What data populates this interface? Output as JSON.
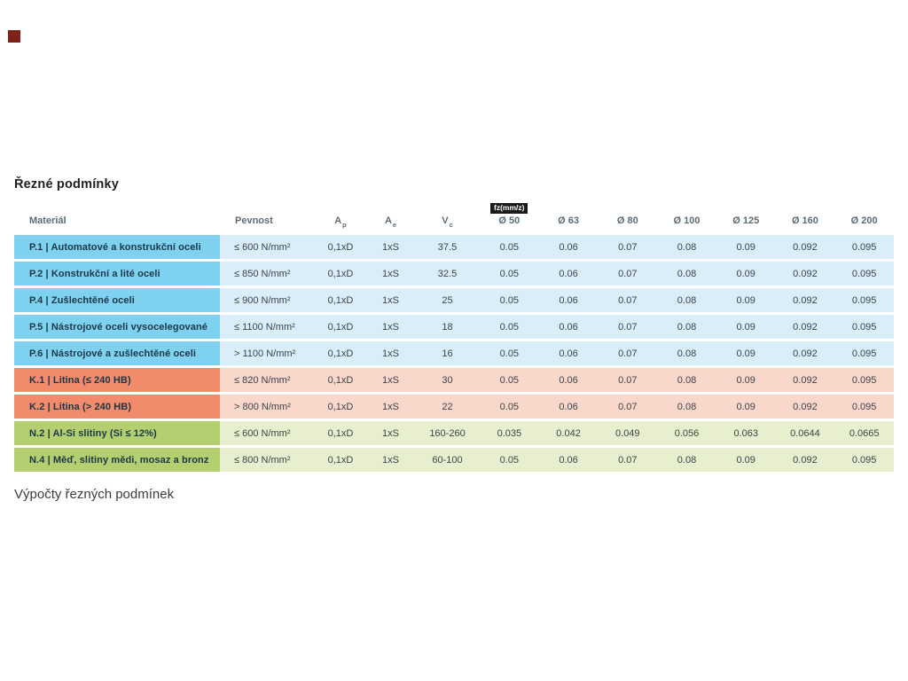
{
  "page": {
    "title": "Řezné podmínky",
    "footer_text": "Výpočty řezných podmínek"
  },
  "table": {
    "headers": {
      "material": "Materiál",
      "pevnost": "Pevnost",
      "ap_base": "A",
      "ap_sub": "p",
      "ae_base": "A",
      "ae_sub": "e",
      "vc_base": "V",
      "vc_sub": "c",
      "fz_chip": "fz(mm/z)",
      "diameters": [
        "Ø 50",
        "Ø 63",
        "Ø 80",
        "Ø 100",
        "Ø 125",
        "Ø 160",
        "Ø 200"
      ]
    },
    "rows": [
      {
        "group": "P",
        "material": "P.1 | Automatové a konstrukční oceli",
        "pevnost": "≤ 600 N/mm²",
        "ap": "0,1xD",
        "ae": "1xS",
        "vc": "37.5",
        "fz": [
          "0.05",
          "0.06",
          "0.07",
          "0.08",
          "0.09",
          "0.092",
          "0.095"
        ]
      },
      {
        "group": "P",
        "material": "P.2 | Konstrukční a lité oceli",
        "pevnost": "≤ 850 N/mm²",
        "ap": "0,1xD",
        "ae": "1xS",
        "vc": "32.5",
        "fz": [
          "0.05",
          "0.06",
          "0.07",
          "0.08",
          "0.09",
          "0.092",
          "0.095"
        ]
      },
      {
        "group": "P",
        "material": "P.4 | Zušlechtěné oceli",
        "pevnost": "≤ 900 N/mm²",
        "ap": "0,1xD",
        "ae": "1xS",
        "vc": "25",
        "fz": [
          "0.05",
          "0.06",
          "0.07",
          "0.08",
          "0.09",
          "0.092",
          "0.095"
        ]
      },
      {
        "group": "P",
        "material": "P.5 | Nástrojové oceli vysocelegované",
        "pevnost": "≤ 1100 N/mm²",
        "ap": "0,1xD",
        "ae": "1xS",
        "vc": "18",
        "fz": [
          "0.05",
          "0.06",
          "0.07",
          "0.08",
          "0.09",
          "0.092",
          "0.095"
        ]
      },
      {
        "group": "P",
        "material": "P.6 | Nástrojové a zušlechtěné oceli",
        "pevnost": "> 1100 N/mm²",
        "ap": "0,1xD",
        "ae": "1xS",
        "vc": "16",
        "fz": [
          "0.05",
          "0.06",
          "0.07",
          "0.08",
          "0.09",
          "0.092",
          "0.095"
        ]
      },
      {
        "group": "K",
        "material": "K.1 | Litina (≤ 240 HB)",
        "pevnost": "≤ 820 N/mm²",
        "ap": "0,1xD",
        "ae": "1xS",
        "vc": "30",
        "fz": [
          "0.05",
          "0.06",
          "0.07",
          "0.08",
          "0.09",
          "0.092",
          "0.095"
        ]
      },
      {
        "group": "K",
        "material": "K.2 | Litina (> 240 HB)",
        "pevnost": "> 800 N/mm²",
        "ap": "0,1xD",
        "ae": "1xS",
        "vc": "22",
        "fz": [
          "0.05",
          "0.06",
          "0.07",
          "0.08",
          "0.09",
          "0.092",
          "0.095"
        ]
      },
      {
        "group": "N",
        "material": "N.2 | Al-Si slitiny (Si ≤ 12%)",
        "pevnost": "≤ 600 N/mm²",
        "ap": "0,1xD",
        "ae": "1xS",
        "vc": "160-260",
        "fz": [
          "0.035",
          "0.042",
          "0.049",
          "0.056",
          "0.063",
          "0.0644",
          "0.0665"
        ]
      },
      {
        "group": "N",
        "material": "N.4 | Měď, slitiny mědi, mosaz a bronz",
        "pevnost": "≤ 800 N/mm²",
        "ap": "0,1xD",
        "ae": "1xS",
        "vc": "60-100",
        "fz": [
          "0.05",
          "0.06",
          "0.07",
          "0.08",
          "0.09",
          "0.092",
          "0.095"
        ]
      }
    ]
  },
  "colors": {
    "p_label": "#7fd1f0",
    "p_cell": "#d9eef9",
    "k_label": "#f28a6c",
    "k_cell": "#fad7cb",
    "n_label": "#b3cf6f",
    "n_cell": "#e7efcf",
    "chip_bg": "#1a1a1a",
    "marker": "#7e211b"
  }
}
